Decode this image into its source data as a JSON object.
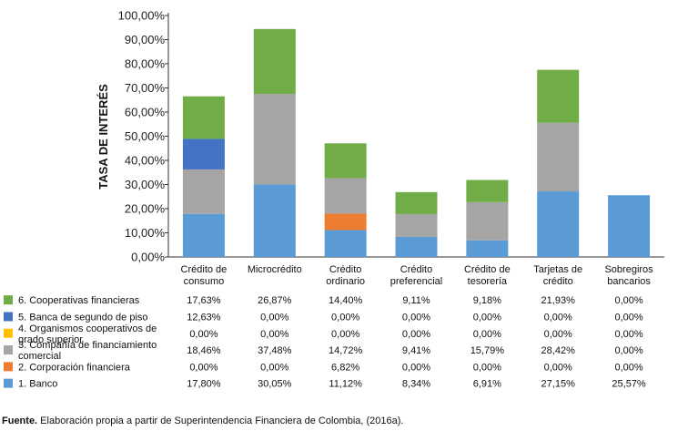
{
  "chart_data": {
    "type": "bar",
    "stacked": true,
    "ylabel": "TASA DE INTERÉS",
    "ylim": [
      0,
      100
    ],
    "yticks": [
      "0,00%",
      "10,00%",
      "20,00%",
      "30,00%",
      "40,00%",
      "50,00%",
      "60,00%",
      "70,00%",
      "80,00%",
      "90,00%",
      "100,00%"
    ],
    "categories": [
      [
        "Crédito de",
        "consumo"
      ],
      [
        "Microcrédito"
      ],
      [
        "Crédito",
        "ordinario"
      ],
      [
        "Crédito",
        "preferencial"
      ],
      [
        "Crédito de",
        "tesorería"
      ],
      [
        "Tarjetas de",
        "crédito"
      ],
      [
        "Sobregiros",
        "bancarios"
      ]
    ],
    "series": [
      {
        "name": "1. Banco",
        "name_lines": [
          "1. Banco"
        ],
        "color": "#5b9bd5",
        "values": [
          17.8,
          30.05,
          11.12,
          8.34,
          6.91,
          27.15,
          25.57
        ],
        "labels": [
          "17,80%",
          "30,05%",
          "11,12%",
          "8,34%",
          "6,91%",
          "27,15%",
          "25,57%"
        ]
      },
      {
        "name": "2. Corporación financiera",
        "name_lines": [
          "2. Corporación financiera"
        ],
        "color": "#ed7d31",
        "values": [
          0,
          0,
          6.82,
          0,
          0,
          0,
          0
        ],
        "labels": [
          "0,00%",
          "0,00%",
          "6,82%",
          "0,00%",
          "0,00%",
          "0,00%",
          "0,00%"
        ]
      },
      {
        "name": "3. Compañía de financiamiento comercial",
        "name_lines": [
          "3. Compañía de financiamiento",
          "comercial"
        ],
        "color": "#a5a5a5",
        "values": [
          18.46,
          37.48,
          14.72,
          9.41,
          15.79,
          28.42,
          0
        ],
        "labels": [
          "18,46%",
          "37,48%",
          "14,72%",
          "9,41%",
          "15,79%",
          "28,42%",
          "0,00%"
        ]
      },
      {
        "name": "4. Organismos cooperativos de grado superior",
        "name_lines": [
          "4. Organismos cooperativos de",
          "grado superior"
        ],
        "color": "#ffc000",
        "values": [
          0,
          0,
          0,
          0,
          0,
          0,
          0
        ],
        "labels": [
          "0,00%",
          "0,00%",
          "0,00%",
          "0,00%",
          "0,00%",
          "0,00%",
          "0,00%"
        ]
      },
      {
        "name": "5. Banca de segundo de piso",
        "name_lines": [
          "5. Banca de segundo de piso"
        ],
        "color": "#4472c4",
        "values": [
          12.63,
          0,
          0,
          0,
          0,
          0,
          0
        ],
        "labels": [
          "12,63%",
          "0,00%",
          "0,00%",
          "0,00%",
          "0,00%",
          "0,00%",
          "0,00%"
        ]
      },
      {
        "name": "6. Cooperativas financieras",
        "name_lines": [
          "6. Cooperativas financieras"
        ],
        "color": "#70ad47",
        "values": [
          17.63,
          26.87,
          14.4,
          9.11,
          9.18,
          21.93,
          0
        ],
        "labels": [
          "17,63%",
          "26,87%",
          "14,40%",
          "9,11%",
          "9,18%",
          "21,93%",
          "0,00%"
        ]
      }
    ]
  },
  "source": {
    "bold": "Fuente.",
    "text": " Elaboración propia a partir de Superintendencia Financiera de Colombia, (2016a)."
  }
}
